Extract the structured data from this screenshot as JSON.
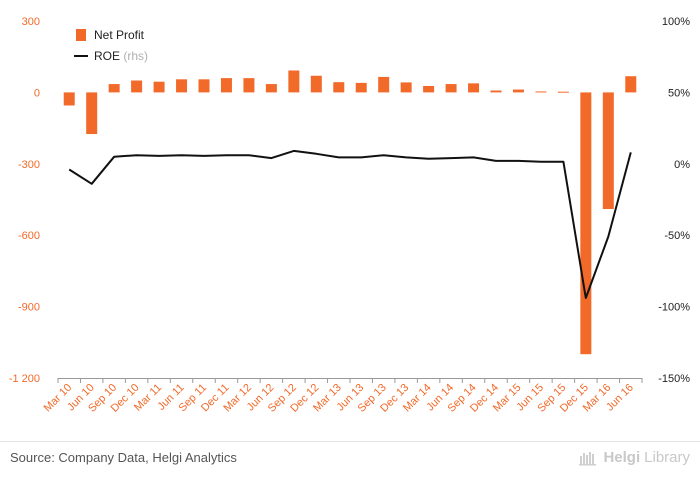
{
  "chart_data": {
    "type": "bar+line",
    "categories": [
      "Mar 10",
      "Jun 10",
      "Sep 10",
      "Dec 10",
      "Mar 11",
      "Jun 11",
      "Sep 11",
      "Dec 11",
      "Mar 12",
      "Jun 12",
      "Sep 12",
      "Dec 12",
      "Mar 13",
      "Jun 13",
      "Sep 13",
      "Dec 13",
      "Mar 14",
      "Jun 14",
      "Sep 14",
      "Dec 14",
      "Mar 15",
      "Jun 15",
      "Sep 15",
      "Dec 15",
      "Mar 16",
      "Jun 16"
    ],
    "series": [
      {
        "name": "Net Profit",
        "type": "bar",
        "axis": "left",
        "color": "#f26a2a",
        "values": [
          -55,
          -175,
          35,
          50,
          45,
          55,
          55,
          60,
          60,
          35,
          92,
          70,
          43,
          40,
          65,
          42,
          27,
          35,
          38,
          8,
          12,
          4,
          3,
          -1100,
          -490,
          68
        ]
      },
      {
        "name": "ROE",
        "legend_suffix": "(rhs)",
        "type": "line",
        "axis": "right",
        "color": "#111111",
        "values": [
          -4,
          -14,
          5,
          6,
          5.5,
          6,
          5.5,
          6,
          6,
          4,
          9,
          7,
          4.5,
          4.5,
          6,
          4.5,
          3.5,
          4,
          4.5,
          2,
          2,
          1.5,
          1.5,
          -94,
          -51,
          8
        ]
      }
    ],
    "y_left": {
      "min": -1200,
      "max": 300,
      "ticks": [
        300,
        0,
        -300,
        -600,
        -900,
        -1200
      ],
      "tick_labels": [
        "300",
        "0",
        "-300",
        "-600",
        "-900",
        "-1 200"
      ]
    },
    "y_right": {
      "min": -150,
      "max": 100,
      "ticks": [
        100,
        50,
        0,
        -50,
        -100,
        -150
      ],
      "tick_labels": [
        "100%",
        "50%",
        "0%",
        "-50%",
        "-100%",
        "-150%"
      ]
    },
    "legend": {
      "placement": "top-left",
      "items": [
        {
          "label": "Net Profit",
          "suffix": ""
        },
        {
          "label": "ROE",
          "suffix": "(rhs)"
        }
      ]
    },
    "axis_color": "#f26a2a",
    "grid": false
  },
  "footer": {
    "source": "Source: Company Data, Helgi Analytics",
    "brand_part1": "Helgi",
    "brand_part2": "Library"
  }
}
